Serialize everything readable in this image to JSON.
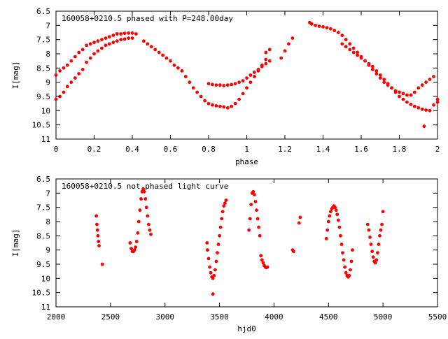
{
  "chart_data": [
    {
      "type": "scatter",
      "title": "160058+0210.5 phased with P=248.00day",
      "xlabel": "phase",
      "ylabel": "I[mag]",
      "xlim": [
        0,
        2
      ],
      "ylim": [
        11,
        6.5
      ],
      "y_inverted": true,
      "x_ticks": [
        0,
        0.2,
        0.4,
        0.6,
        0.8,
        1,
        1.2,
        1.4,
        1.6,
        1.8,
        2
      ],
      "x_tick_labels": [
        "0",
        "0.2",
        "0.4",
        "0.6",
        "0.8",
        "1",
        "1.2",
        "1.4",
        "1.6",
        "1.8",
        "2"
      ],
      "y_ticks": [
        6.5,
        7,
        7.5,
        8,
        8.5,
        9,
        9.5,
        10,
        10.5,
        11
      ],
      "y_tick_labels": [
        "6.5",
        "7",
        "7.5",
        "8",
        "8.5",
        "9",
        "9.5",
        "10",
        "10.5",
        "11"
      ],
      "grid": false,
      "marker_color": "#ff0000",
      "series": [
        {
          "x": [
            0.0,
            0.02,
            0.04,
            0.06,
            0.08,
            0.1,
            0.12,
            0.14,
            0.16,
            0.18,
            0.2,
            0.22,
            0.24,
            0.26,
            0.28,
            0.3,
            0.32,
            0.34,
            0.36,
            0.38,
            0.4,
            0.42,
            0.0,
            0.02,
            0.04,
            0.06,
            0.08,
            0.1,
            0.12,
            0.14,
            0.16,
            0.18,
            0.2,
            0.22,
            0.24,
            0.26,
            0.28,
            0.3,
            0.32,
            0.34,
            0.36,
            0.38,
            0.4,
            0.46,
            0.48,
            0.5,
            0.52,
            0.54,
            0.56,
            0.58,
            0.6,
            0.62,
            0.64,
            0.66,
            0.68,
            0.7,
            0.72,
            0.74,
            0.76,
            0.78,
            0.8,
            0.82,
            0.84,
            0.86,
            0.88,
            0.9,
            0.92,
            0.94,
            0.96,
            0.98,
            1.0,
            1.02,
            1.04,
            1.06,
            1.08,
            1.1,
            0.8,
            0.82,
            0.84,
            0.86,
            0.88,
            0.9,
            0.92,
            0.94,
            0.96,
            0.98,
            1.0,
            1.02,
            1.04,
            1.06,
            1.08,
            1.1,
            1.12,
            1.1,
            1.12,
            1.18,
            1.2,
            1.22,
            1.24,
            1.33,
            1.34,
            1.36,
            1.38,
            1.4,
            1.42,
            1.44,
            1.46,
            1.48,
            1.5,
            1.52,
            1.54,
            1.56,
            1.58,
            1.6,
            1.62,
            1.64,
            1.66,
            1.68,
            1.7,
            1.72,
            1.74,
            1.76,
            1.78,
            1.8,
            1.82,
            1.84,
            1.86,
            1.88,
            1.9,
            1.92,
            1.94,
            1.96,
            1.98,
            2.0,
            1.5,
            1.52,
            1.54,
            1.56,
            1.58,
            1.6,
            1.62,
            1.64,
            1.66,
            1.68,
            1.7,
            1.72,
            1.74,
            1.76,
            1.78,
            1.8,
            1.82,
            1.84,
            1.86,
            1.88,
            1.9,
            1.92,
            1.94,
            1.96,
            1.98,
            2.0,
            1.93
          ],
          "y": [
            8.75,
            8.6,
            8.5,
            8.4,
            8.25,
            8.1,
            7.95,
            7.85,
            7.7,
            7.65,
            7.6,
            7.55,
            7.5,
            7.45,
            7.4,
            7.35,
            7.3,
            7.3,
            7.28,
            7.27,
            7.27,
            7.3,
            9.6,
            9.5,
            9.35,
            9.15,
            9.0,
            8.85,
            8.7,
            8.55,
            8.3,
            8.15,
            8.0,
            7.9,
            7.8,
            7.7,
            7.65,
            7.6,
            7.55,
            7.5,
            7.48,
            7.45,
            7.45,
            7.55,
            7.65,
            7.75,
            7.85,
            7.95,
            8.05,
            8.15,
            8.25,
            8.4,
            8.5,
            8.6,
            8.8,
            9.0,
            9.2,
            9.35,
            9.5,
            9.65,
            9.75,
            9.8,
            9.83,
            9.85,
            9.87,
            9.9,
            9.85,
            9.75,
            9.6,
            9.4,
            9.2,
            9.0,
            8.8,
            8.6,
            8.4,
            8.2,
            9.05,
            9.08,
            9.1,
            9.1,
            9.12,
            9.1,
            9.08,
            9.05,
            9.0,
            8.95,
            8.85,
            8.75,
            8.65,
            8.55,
            8.45,
            8.35,
            8.25,
            7.95,
            7.85,
            8.15,
            7.9,
            7.65,
            7.45,
            6.9,
            6.95,
            7.0,
            7.03,
            7.05,
            7.08,
            7.12,
            7.18,
            7.25,
            7.35,
            7.5,
            7.65,
            7.8,
            7.95,
            8.1,
            8.25,
            8.4,
            8.55,
            8.7,
            8.85,
            9.0,
            9.1,
            9.2,
            9.3,
            9.35,
            9.4,
            9.45,
            9.45,
            9.35,
            9.2,
            9.1,
            9.0,
            8.9,
            8.8,
            9.6,
            7.65,
            7.75,
            7.85,
            7.95,
            8.05,
            8.15,
            8.25,
            8.35,
            8.45,
            8.6,
            8.75,
            8.9,
            9.05,
            9.2,
            9.35,
            9.5,
            9.6,
            9.7,
            9.78,
            9.85,
            9.9,
            9.95,
            9.98,
            10.0,
            9.8,
            9.7,
            10.55
          ]
        }
      ]
    },
    {
      "type": "scatter",
      "title": "160058+0210.5 not phased light curve",
      "xlabel": "hjd0",
      "ylabel": "I[mag]",
      "xlim": [
        2000,
        5500
      ],
      "ylim": [
        11,
        6.5
      ],
      "y_inverted": true,
      "x_ticks": [
        2000,
        2500,
        3000,
        3500,
        4000,
        4500,
        5000,
        5500
      ],
      "x_tick_labels": [
        "2000",
        "2500",
        "3000",
        "3500",
        "4000",
        "4500",
        "5000",
        "5500"
      ],
      "y_ticks": [
        6.5,
        7,
        7.5,
        8,
        8.5,
        9,
        9.5,
        10,
        10.5,
        11
      ],
      "y_tick_labels": [
        "6.5",
        "7",
        "7.5",
        "8",
        "8.5",
        "9",
        "9.5",
        "10",
        "10.5",
        "11"
      ],
      "grid": false,
      "marker_color": "#ff0000",
      "series": [
        {
          "x": [
            2370,
            2375,
            2380,
            2385,
            2390,
            2395,
            2425,
            2680,
            2690,
            2700,
            2710,
            2720,
            2730,
            2740,
            2750,
            2760,
            2770,
            2780,
            2790,
            2800,
            2810,
            2820,
            2830,
            2840,
            2850,
            2860,
            2870,
            3385,
            3390,
            3400,
            3410,
            3420,
            3430,
            3440,
            3450,
            3460,
            3470,
            3480,
            3490,
            3500,
            3510,
            3520,
            3530,
            3540,
            3550,
            3560,
            3440,
            3770,
            3780,
            3790,
            3800,
            3810,
            3820,
            3830,
            3840,
            3850,
            3860,
            3870,
            3880,
            3890,
            3900,
            3910,
            3920,
            3930,
            3940,
            4170,
            4180,
            4230,
            4240,
            4480,
            4490,
            4500,
            4510,
            4520,
            4530,
            4540,
            4550,
            4560,
            4570,
            4580,
            4590,
            4600,
            4610,
            4620,
            4630,
            4640,
            4650,
            4660,
            4670,
            4680,
            4690,
            4700,
            4710,
            4720,
            4860,
            4870,
            4880,
            4890,
            4900,
            4910,
            4920,
            4930,
            4940,
            4950,
            4960,
            4970,
            4980,
            4990,
            5000
          ],
          "y": [
            7.8,
            8.1,
            8.3,
            8.5,
            8.7,
            8.85,
            9.5,
            8.75,
            8.95,
            9.05,
            9.05,
            9.0,
            8.9,
            8.7,
            8.4,
            8.0,
            7.6,
            7.2,
            6.95,
            6.85,
            6.95,
            7.2,
            7.5,
            7.8,
            8.1,
            8.3,
            8.45,
            8.75,
            9.0,
            9.3,
            9.6,
            9.8,
            9.95,
            10.0,
            9.9,
            9.7,
            9.4,
            9.1,
            8.8,
            8.5,
            8.2,
            7.9,
            7.65,
            7.45,
            7.35,
            7.25,
            10.55,
            8.3,
            7.9,
            7.4,
            7.0,
            6.95,
            7.05,
            7.3,
            7.6,
            7.9,
            8.2,
            8.5,
            9.2,
            9.35,
            9.45,
            9.55,
            9.6,
            9.62,
            9.6,
            9.0,
            9.05,
            8.05,
            7.85,
            8.6,
            8.3,
            8.0,
            7.8,
            7.65,
            7.55,
            7.5,
            7.45,
            7.5,
            7.6,
            7.75,
            7.95,
            8.2,
            8.5,
            8.8,
            9.1,
            9.35,
            9.6,
            9.8,
            9.9,
            9.95,
            9.9,
            9.7,
            9.4,
            9.0,
            8.1,
            8.3,
            8.55,
            8.8,
            9.05,
            9.25,
            9.4,
            9.45,
            9.35,
            9.1,
            8.8,
            8.5,
            8.3,
            8.1,
            7.65
          ]
        }
      ]
    }
  ]
}
